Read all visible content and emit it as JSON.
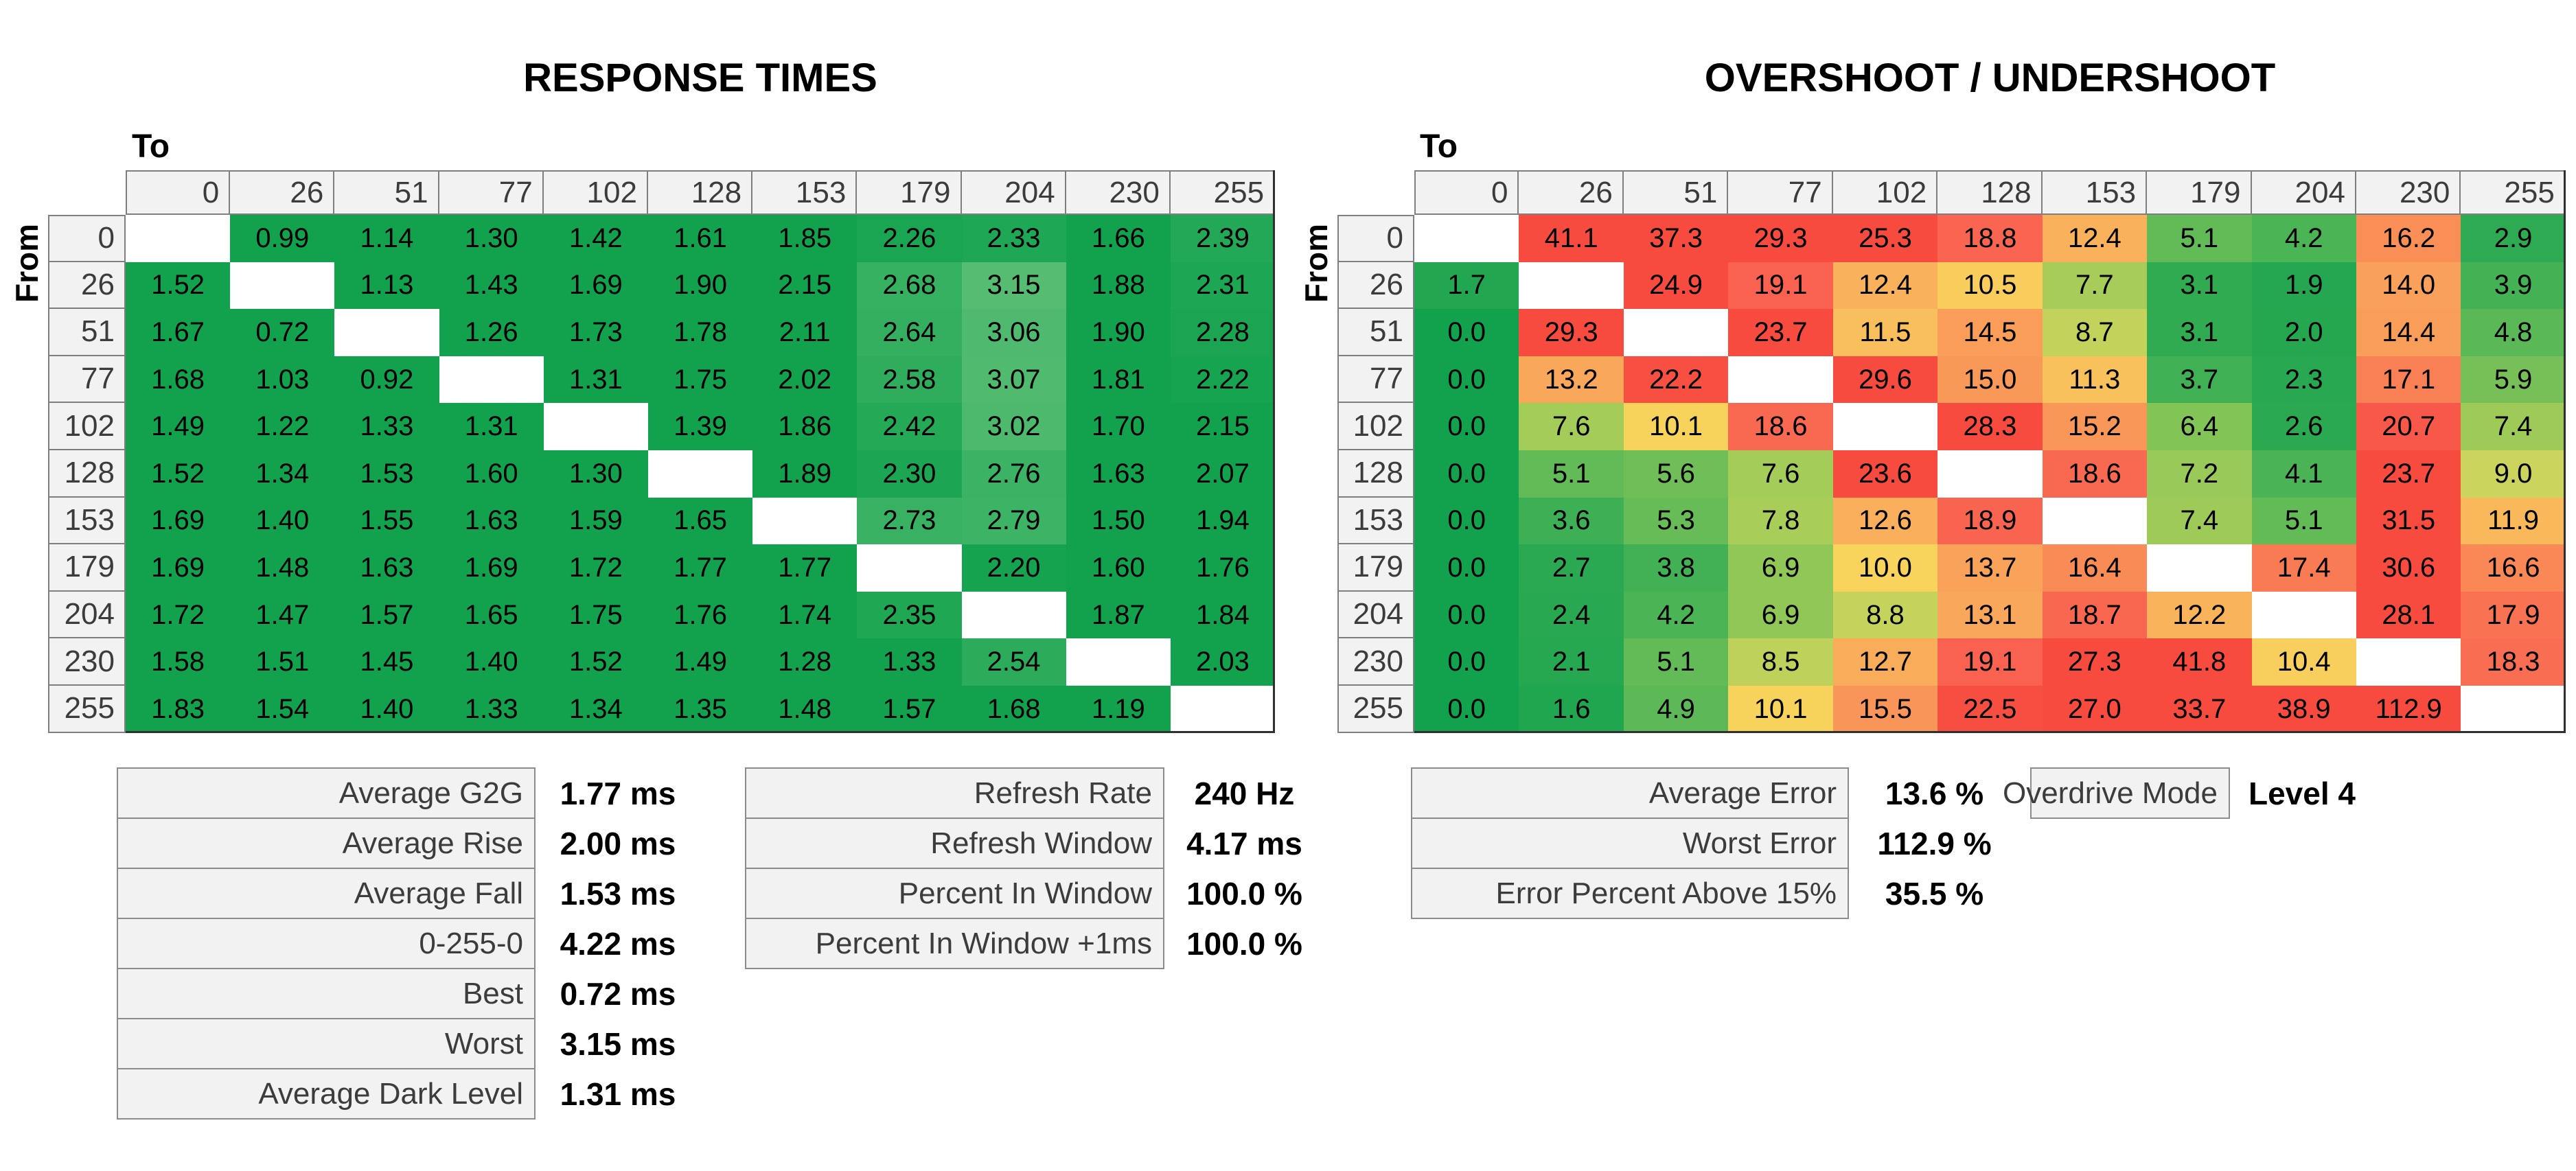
{
  "titles": {
    "left": "RESPONSE TIMES",
    "right": "OVERSHOOT / UNDERSHOOT"
  },
  "axes": {
    "to_label": "To",
    "from_label": "From"
  },
  "chart_data": [
    {
      "type": "heatmap",
      "title": "RESPONSE TIMES",
      "unit": "ms",
      "xlabel": "To",
      "ylabel": "From",
      "x_categories": [
        0,
        26,
        51,
        77,
        102,
        128,
        153,
        179,
        204,
        230,
        255
      ],
      "y_categories": [
        0,
        26,
        51,
        77,
        102,
        128,
        153,
        179,
        204,
        230,
        255
      ],
      "decimals": 2,
      "rows": [
        [
          null,
          0.99,
          1.14,
          1.3,
          1.42,
          1.61,
          1.85,
          2.26,
          2.33,
          1.66,
          2.39
        ],
        [
          1.52,
          null,
          1.13,
          1.43,
          1.69,
          1.9,
          2.15,
          2.68,
          3.15,
          1.88,
          2.31
        ],
        [
          1.67,
          0.72,
          null,
          1.26,
          1.73,
          1.78,
          2.11,
          2.64,
          3.06,
          1.9,
          2.28
        ],
        [
          1.68,
          1.03,
          0.92,
          null,
          1.31,
          1.75,
          2.02,
          2.58,
          3.07,
          1.81,
          2.22
        ],
        [
          1.49,
          1.22,
          1.33,
          1.31,
          null,
          1.39,
          1.86,
          2.42,
          3.02,
          1.7,
          2.15
        ],
        [
          1.52,
          1.34,
          1.53,
          1.6,
          1.3,
          null,
          1.89,
          2.3,
          2.76,
          1.63,
          2.07
        ],
        [
          1.69,
          1.4,
          1.55,
          1.63,
          1.59,
          1.65,
          null,
          2.73,
          2.79,
          1.5,
          1.94
        ],
        [
          1.69,
          1.48,
          1.63,
          1.69,
          1.72,
          1.77,
          1.77,
          null,
          2.2,
          1.6,
          1.76
        ],
        [
          1.72,
          1.47,
          1.57,
          1.65,
          1.75,
          1.76,
          1.74,
          2.35,
          null,
          1.87,
          1.84
        ],
        [
          1.58,
          1.51,
          1.45,
          1.4,
          1.52,
          1.49,
          1.28,
          1.33,
          2.54,
          null,
          2.03
        ],
        [
          1.83,
          1.54,
          1.4,
          1.33,
          1.34,
          1.35,
          1.48,
          1.57,
          1.68,
          1.19,
          null
        ]
      ]
    },
    {
      "type": "heatmap",
      "title": "OVERSHOOT / UNDERSHOOT",
      "unit": "%",
      "xlabel": "To",
      "ylabel": "From",
      "x_categories": [
        0,
        26,
        51,
        77,
        102,
        128,
        153,
        179,
        204,
        230,
        255
      ],
      "y_categories": [
        0,
        26,
        51,
        77,
        102,
        128,
        153,
        179,
        204,
        230,
        255
      ],
      "decimals": 1,
      "rows": [
        [
          null,
          41.1,
          37.3,
          29.3,
          25.3,
          18.8,
          12.4,
          5.1,
          4.2,
          16.2,
          2.9
        ],
        [
          1.7,
          null,
          24.9,
          19.1,
          12.4,
          10.5,
          7.7,
          3.1,
          1.9,
          14.0,
          3.9
        ],
        [
          0.0,
          29.3,
          null,
          23.7,
          11.5,
          14.5,
          8.7,
          3.1,
          2.0,
          14.4,
          4.8
        ],
        [
          0.0,
          13.2,
          22.2,
          null,
          29.6,
          15.0,
          11.3,
          3.7,
          2.3,
          17.1,
          5.9
        ],
        [
          0.0,
          7.6,
          10.1,
          18.6,
          null,
          28.3,
          15.2,
          6.4,
          2.6,
          20.7,
          7.4
        ],
        [
          0.0,
          5.1,
          5.6,
          7.6,
          23.6,
          null,
          18.6,
          7.2,
          4.1,
          23.7,
          9.0
        ],
        [
          0.0,
          3.6,
          5.3,
          7.8,
          12.6,
          18.9,
          null,
          7.4,
          5.1,
          31.5,
          11.9
        ],
        [
          0.0,
          2.7,
          3.8,
          6.9,
          10.0,
          13.7,
          16.4,
          null,
          17.4,
          30.6,
          16.6
        ],
        [
          0.0,
          2.4,
          4.2,
          6.9,
          8.8,
          13.1,
          18.7,
          12.2,
          null,
          28.1,
          17.9
        ],
        [
          0.0,
          2.1,
          5.1,
          8.5,
          12.7,
          19.1,
          27.3,
          41.8,
          10.4,
          null,
          18.3
        ],
        [
          0.0,
          1.6,
          4.9,
          10.1,
          15.5,
          22.5,
          27.0,
          33.7,
          38.9,
          112.9,
          null
        ]
      ]
    }
  ],
  "summary_tables": {
    "response": {
      "rows": [
        {
          "label": "Average G2G",
          "value": "1.77 ms"
        },
        {
          "label": "Average Rise",
          "value": "2.00 ms"
        },
        {
          "label": "Average Fall",
          "value": "1.53 ms"
        },
        {
          "label": "0-255-0",
          "value": "4.22 ms"
        },
        {
          "label": "Best",
          "value": "0.72 ms"
        },
        {
          "label": "Worst",
          "value": "3.15 ms"
        },
        {
          "label": "Average Dark Level",
          "value": "1.31 ms"
        }
      ]
    },
    "refresh": {
      "rows": [
        {
          "label": "Refresh Rate",
          "value": "240 Hz"
        },
        {
          "label": "Refresh Window",
          "value": "4.17 ms"
        },
        {
          "label": "Percent In Window",
          "value": "100.0 %"
        },
        {
          "label": "Percent In Window +1ms",
          "value": "100.0 %"
        }
      ]
    },
    "error": {
      "rows": [
        {
          "label": "Average Error",
          "value": "13.6 %"
        },
        {
          "label": "Worst Error",
          "value": "112.9 %"
        },
        {
          "label": "Error Percent Above 15%",
          "value": "35.5 %"
        }
      ]
    },
    "overdrive": {
      "label": "Overdrive Mode",
      "value": "Level 4"
    }
  },
  "colors": {
    "background": "#FFFFFF",
    "header_bg": "#F2F2F2",
    "header_border": "#7F7F7F",
    "header_text": "#3C3C3C",
    "cell_text": "#000000",
    "table_outline": "#303030",
    "summary_box_bg": "#F2F2F2",
    "summary_box_border": "#8C8C8C",
    "summary_label_text": "#3C3C3C",
    "summary_value_text": "#000000",
    "diagonal_cell": "#FFFFFF",
    "response_scale": [
      [
        2.15,
        "#12A24D"
      ],
      [
        3.15,
        "#55BC72"
      ]
    ],
    "overshoot_scale": [
      [
        0,
        "#12A24D"
      ],
      [
        3,
        "#2EAA52"
      ],
      [
        5,
        "#5FBA57"
      ],
      [
        7,
        "#93C857"
      ],
      [
        9,
        "#CBD45C"
      ],
      [
        10,
        "#F8D45C"
      ],
      [
        13,
        "#F9A95B"
      ],
      [
        16,
        "#F99157"
      ],
      [
        19,
        "#F96250"
      ],
      [
        23,
        "#F74B40"
      ]
    ]
  }
}
